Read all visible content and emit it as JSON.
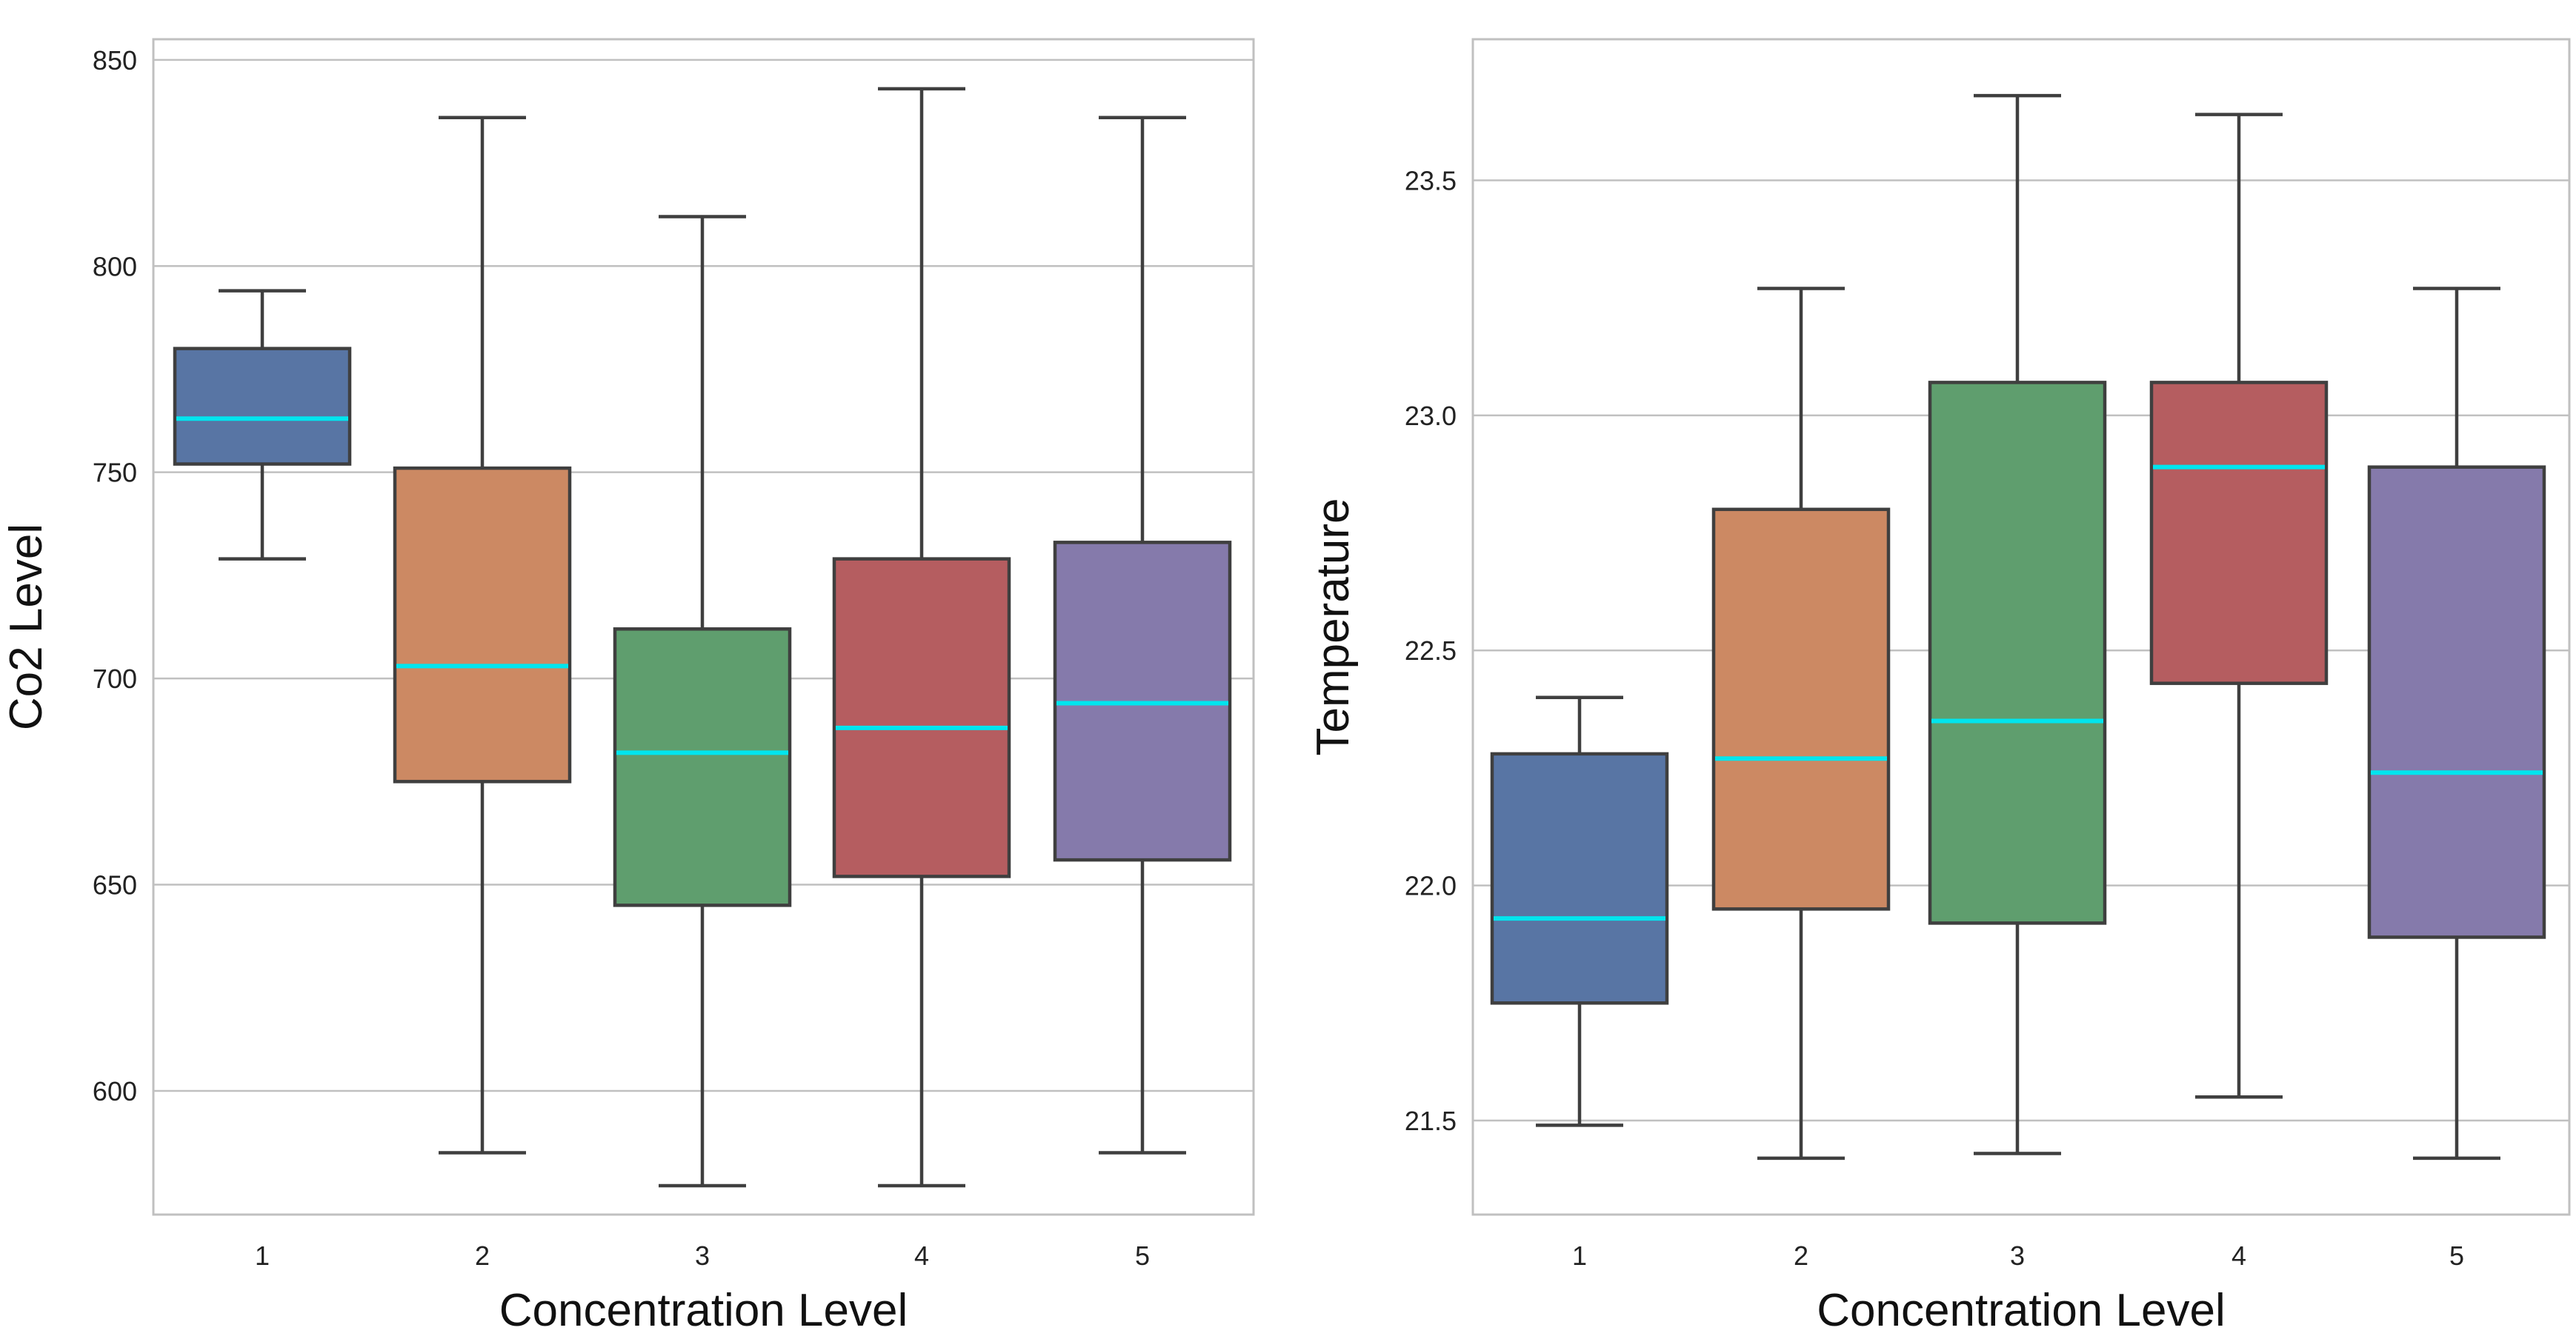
{
  "chart_data": [
    {
      "type": "boxplot",
      "xlabel": "Concentration Level",
      "ylabel": "Co2 Level",
      "categories": [
        "1",
        "2",
        "3",
        "4",
        "5"
      ],
      "ylim": [
        570,
        855
      ],
      "yticks": [
        600,
        650,
        700,
        750,
        800,
        850
      ],
      "ytick_labels": [
        "600",
        "650",
        "700",
        "750",
        "800",
        "850"
      ],
      "grid": true,
      "boxes": [
        {
          "category": "1",
          "whisker_low": 729,
          "q1": 752,
          "median": 763,
          "q3": 780,
          "whisker_high": 794,
          "color": "#5875a4"
        },
        {
          "category": "2",
          "whisker_low": 585,
          "q1": 675,
          "median": 703,
          "q3": 751,
          "whisker_high": 836,
          "color": "#cc8963"
        },
        {
          "category": "3",
          "whisker_low": 577,
          "q1": 645,
          "median": 682,
          "q3": 712,
          "whisker_high": 812,
          "color": "#5f9e6e"
        },
        {
          "category": "4",
          "whisker_low": 577,
          "q1": 652,
          "median": 688,
          "q3": 729,
          "whisker_high": 843,
          "color": "#b55d60"
        },
        {
          "category": "5",
          "whisker_low": 585,
          "q1": 656,
          "median": 694,
          "q3": 733,
          "whisker_high": 836,
          "color": "#857aab"
        }
      ]
    },
    {
      "type": "boxplot",
      "xlabel": "Concentration Level",
      "ylabel": "Temperature",
      "categories": [
        "1",
        "2",
        "3",
        "4",
        "5"
      ],
      "ylim": [
        21.3,
        23.8
      ],
      "yticks": [
        21.5,
        22.0,
        22.5,
        23.0,
        23.5
      ],
      "ytick_labels": [
        "21.5",
        "22.0",
        "22.5",
        "23.0",
        "23.5"
      ],
      "grid": true,
      "boxes": [
        {
          "category": "1",
          "whisker_low": 21.49,
          "q1": 21.75,
          "median": 21.93,
          "q3": 22.28,
          "whisker_high": 22.4,
          "color": "#5875a4"
        },
        {
          "category": "2",
          "whisker_low": 21.42,
          "q1": 21.95,
          "median": 22.27,
          "q3": 22.8,
          "whisker_high": 23.27,
          "color": "#cc8963"
        },
        {
          "category": "3",
          "whisker_low": 21.43,
          "q1": 21.92,
          "median": 22.35,
          "q3": 23.07,
          "whisker_high": 23.68,
          "color": "#5f9e6e"
        },
        {
          "category": "4",
          "whisker_low": 21.55,
          "q1": 22.43,
          "median": 22.89,
          "q3": 23.07,
          "whisker_high": 23.64,
          "color": "#b55d60"
        },
        {
          "category": "5",
          "whisker_low": 21.42,
          "q1": 21.89,
          "median": 22.24,
          "q3": 22.89,
          "whisker_high": 23.27,
          "color": "#857aab"
        }
      ]
    }
  ],
  "style": {
    "median_color": "#00e5ee",
    "box_edge_color": "#3f3f3f",
    "grid_color": "#c0c0c0",
    "frame_color": "#c0c0c0"
  }
}
